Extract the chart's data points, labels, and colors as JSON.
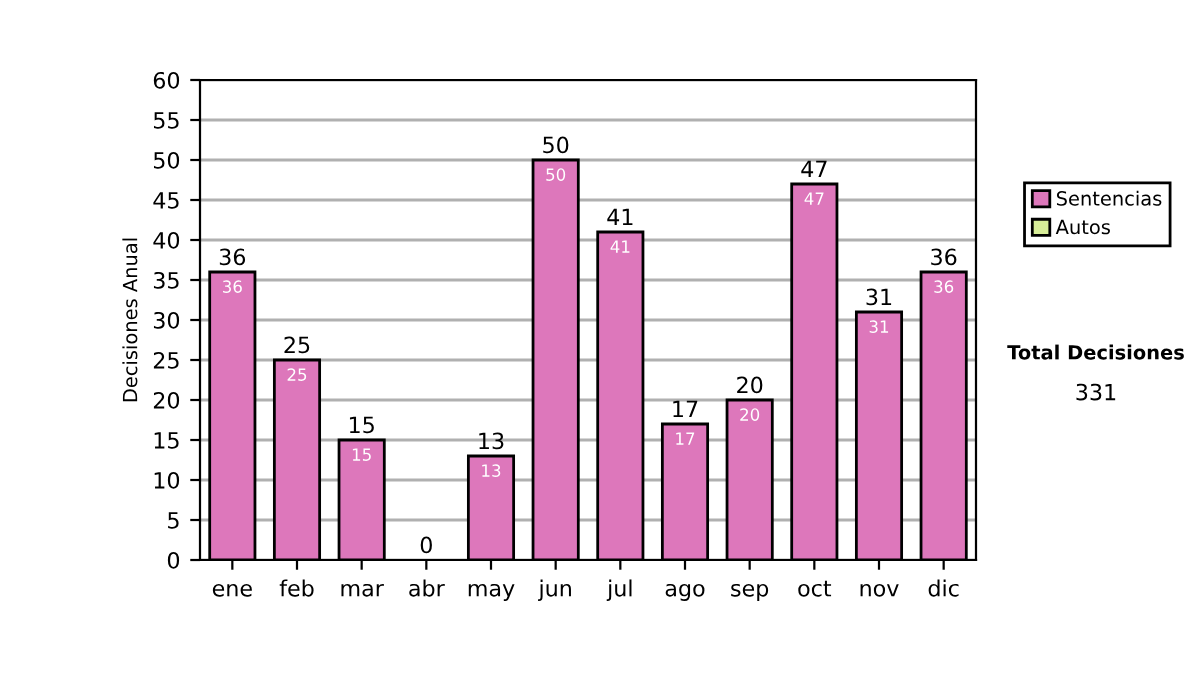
{
  "chart_data": {
    "type": "bar",
    "ylabel": "Decisiones Anual",
    "categories": [
      "ene",
      "feb",
      "mar",
      "abr",
      "may",
      "jun",
      "jul",
      "ago",
      "sep",
      "oct",
      "nov",
      "dic"
    ],
    "series": [
      {
        "name": "Sentencias",
        "color": "#dd77bb",
        "values": [
          36,
          25,
          15,
          0,
          13,
          50,
          41,
          17,
          20,
          47,
          31,
          36
        ],
        "value_labels": [
          "36",
          "25",
          "15",
          null,
          "13",
          "50",
          "41",
          "17",
          "20",
          "47",
          "31",
          "36"
        ]
      },
      {
        "name": "Autos",
        "color": "#d8ee99",
        "values": [
          0,
          0,
          0,
          0,
          0,
          0,
          0,
          0,
          0,
          0,
          0,
          0
        ]
      }
    ],
    "stacked": true,
    "totals": [
      "36",
      "25",
      "15",
      "0",
      "13",
      "50",
      "41",
      "17",
      "20",
      "47",
      "31",
      "36"
    ],
    "ylim": [
      0,
      60
    ],
    "yticks": [
      0,
      5,
      10,
      15,
      20,
      25,
      30,
      35,
      40,
      45,
      50,
      55,
      60
    ],
    "grid": "y",
    "legend": "right",
    "annotations": [
      "Total Decisiones",
      "331"
    ]
  }
}
